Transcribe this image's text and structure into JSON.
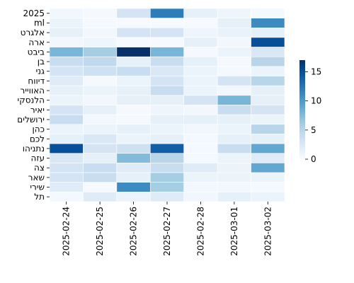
{
  "chart_data": {
    "type": "heatmap",
    "title": "",
    "xlabel": "",
    "ylabel": "",
    "x": [
      "2025-02-24",
      "2025-02-25",
      "2025-02-26",
      "2025-02-27",
      "2025-02-28",
      "2025-03-01",
      "2025-03-02"
    ],
    "y": [
      "2025",
      "ml",
      "אלגרט",
      "ארה",
      "ביבט",
      "בן",
      "גני",
      "דיווח",
      "האווייר",
      "הלנסקי",
      "יאיר",
      "ירושלים",
      "כהן",
      "לכם",
      "נתניהו",
      "עזה",
      "צה",
      "שאר",
      "שירי",
      "תל"
    ],
    "values": [
      [
        0.5,
        0.2,
        3,
        12,
        1.5,
        0.8,
        0.3
      ],
      [
        1,
        0.2,
        0.1,
        0.1,
        0.1,
        1.5,
        11
      ],
      [
        1.5,
        0.5,
        3,
        3,
        0.8,
        1.2,
        1.5
      ],
      [
        0.5,
        0.8,
        0.1,
        0.1,
        1.5,
        0.5,
        15
      ],
      [
        8,
        6,
        17,
        8,
        0.2,
        1,
        2.5
      ],
      [
        4,
        4.5,
        1.5,
        4,
        1.5,
        0.2,
        5
      ],
      [
        3,
        3.5,
        4,
        2.5,
        1,
        0.3,
        1
      ],
      [
        2,
        0.2,
        1,
        3,
        1,
        3,
        5
      ],
      [
        1.5,
        1,
        1.5,
        4,
        1,
        0.5,
        1.5
      ],
      [
        1,
        0.5,
        1.5,
        1.5,
        3,
        8,
        1.5
      ],
      [
        3,
        1.5,
        0.2,
        0.8,
        0.5,
        4,
        3
      ],
      [
        4,
        0.5,
        0.2,
        1.5,
        1.5,
        1.5,
        1
      ],
      [
        1,
        1,
        1.5,
        1,
        0.5,
        1,
        5
      ],
      [
        1.5,
        2.5,
        1,
        1.5,
        0.3,
        1.5,
        1.5
      ],
      [
        15,
        3,
        3.5,
        14,
        0.3,
        4,
        9
      ],
      [
        2.5,
        1.5,
        7.5,
        5,
        0.3,
        1,
        2
      ],
      [
        3,
        4,
        2,
        4,
        2,
        1,
        9
      ],
      [
        3,
        4,
        1.5,
        6,
        1,
        1,
        1
      ],
      [
        2,
        0.1,
        11,
        6,
        0.5,
        0.5,
        0.3
      ],
      [
        0.3,
        2,
        1,
        2,
        0.5,
        1.5,
        1
      ]
    ],
    "colorbar": {
      "min": 0,
      "max": 17,
      "ticks": [
        0,
        5,
        10,
        15
      ]
    },
    "colormap": [
      "#f7fbff",
      "#deebf7",
      "#c6dbef",
      "#9ecae1",
      "#6baed6",
      "#4292c6",
      "#2171b5",
      "#08519c",
      "#08306b"
    ],
    "grid": false,
    "legend": "none"
  }
}
